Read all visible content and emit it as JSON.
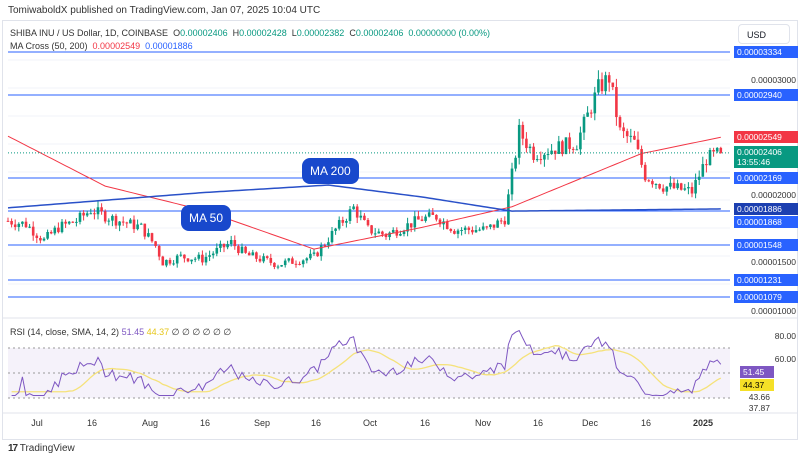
{
  "header": {
    "published": "TomiwaboldX published on TradingView.com, Jan 07, 2025 10:04 UTC",
    "currency": "USD"
  },
  "legend": {
    "symbol": "SHIBA INU / US Dollar, 1D, COINBASE",
    "o_label": "O",
    "o": "0.00002406",
    "h_label": "H",
    "h": "0.00002428",
    "l_label": "L",
    "l": "0.00002382",
    "c_label": "C",
    "c": "0.00002406",
    "change": "0.00000000 (0.00%)",
    "ma_title": "MA Cross (50, 200)",
    "ma50": "0.00002549",
    "ma200": "0.00001886"
  },
  "rsi_legend": {
    "title": "RSI (14, close, SMA, 14, 2)",
    "rsi": "51.45",
    "sma": "44.37",
    "extras": "∅ ∅ ∅ ∅ ∅ ∅"
  },
  "annotations": {
    "ma200": "MA 200",
    "ma50": "MA 50"
  },
  "footer": {
    "brand": "TradingView"
  },
  "colors": {
    "up": "#089981",
    "down": "#f23645",
    "ma50": "#f23645",
    "ma200": "#2950c8",
    "level_line": "#2962ff",
    "rsi": "#7e57c2",
    "rsi_sma": "#f5e27a"
  },
  "chart_data": [
    {
      "type": "candlestick",
      "title": "SHIBA INU / US Dollar, 1D, COINBASE",
      "unit": "USD",
      "ylim": [
        9.5e-06,
        3.6e-05
      ],
      "x_ticks": [
        "Jul",
        "16",
        "Aug",
        "16",
        "Sep",
        "16",
        "Oct",
        "16",
        "Nov",
        "16",
        "Dec",
        "16",
        "2025"
      ],
      "y_ticks": [
        "0.00003000",
        "0.00002000",
        "0.00001500",
        "0.00001000"
      ],
      "close_keypoints": [
        [
          "2024-06-23",
          1.78e-05
        ],
        [
          "2024-06-28",
          1.75e-05
        ],
        [
          "2024-07-03",
          1.6e-05
        ],
        [
          "2024-07-07",
          1.72e-05
        ],
        [
          "2024-07-12",
          1.78e-05
        ],
        [
          "2024-07-16",
          1.88e-05
        ],
        [
          "2024-07-22",
          1.8e-05
        ],
        [
          "2024-07-30",
          1.72e-05
        ],
        [
          "2024-08-03",
          1.55e-05
        ],
        [
          "2024-08-05",
          1.4e-05
        ],
        [
          "2024-08-10",
          1.45e-05
        ],
        [
          "2024-08-16",
          1.43e-05
        ],
        [
          "2024-08-24",
          1.58e-05
        ],
        [
          "2024-08-28",
          1.47e-05
        ],
        [
          "2024-09-06",
          1.38e-05
        ],
        [
          "2024-09-16",
          1.45e-05
        ],
        [
          "2024-09-22",
          1.7e-05
        ],
        [
          "2024-09-27",
          1.9e-05
        ],
        [
          "2024-10-01",
          1.7e-05
        ],
        [
          "2024-10-06",
          1.65e-05
        ],
        [
          "2024-10-16",
          1.8e-05
        ],
        [
          "2024-10-20",
          1.82e-05
        ],
        [
          "2024-10-25",
          1.7e-05
        ],
        [
          "2024-11-03",
          1.7e-05
        ],
        [
          "2024-11-08",
          1.8e-05
        ],
        [
          "2024-11-12",
          2.6e-05
        ],
        [
          "2024-11-16",
          2.4e-05
        ],
        [
          "2024-11-28",
          2.5e-05
        ],
        [
          "2024-12-04",
          3e-05
        ],
        [
          "2024-12-07",
          3.1e-05
        ],
        [
          "2024-12-10",
          2.6e-05
        ],
        [
          "2024-12-14",
          2.5e-05
        ],
        [
          "2024-12-17",
          2.2e-05
        ],
        [
          "2024-12-22",
          2.1e-05
        ],
        [
          "2024-12-30",
          2.05e-05
        ],
        [
          "2025-01-03",
          2.35e-05
        ],
        [
          "2025-01-07",
          2.406e-05
        ]
      ],
      "price_labels": [
        {
          "value": "0.00003334",
          "kind": "level"
        },
        {
          "value": "0.00002940",
          "kind": "level"
        },
        {
          "value": "0.00002549",
          "kind": "ma50"
        },
        {
          "value": "0.00002406",
          "kind": "last",
          "countdown": "13:55:46"
        },
        {
          "value": "0.00002169",
          "kind": "level"
        },
        {
          "value": "0.00001886",
          "kind": "ma200"
        },
        {
          "value": "0.00001868",
          "kind": "level"
        },
        {
          "value": "0.00001548",
          "kind": "level"
        },
        {
          "value": "0.00001231",
          "kind": "level"
        },
        {
          "value": "0.00001079",
          "kind": "level"
        }
      ],
      "series": [
        {
          "name": "MA Cross 50",
          "keypoints": [
            [
              "2024-06-23",
              2.56e-05
            ],
            [
              "2024-07-20",
              2.1e-05
            ],
            [
              "2024-08-16",
              1.88e-05
            ],
            [
              "2024-09-16",
              1.52e-05
            ],
            [
              "2024-10-16",
              1.72e-05
            ],
            [
              "2024-11-10",
              1.91e-05
            ],
            [
              "2024-12-16",
              2.4e-05
            ],
            [
              "2025-01-07",
              2.55e-05
            ]
          ]
        },
        {
          "name": "MA Cross 200",
          "keypoints": [
            [
              "2024-06-23",
              1.9e-05
            ],
            [
              "2024-08-16",
              2.04e-05
            ],
            [
              "2024-09-20",
              2.11e-05
            ],
            [
              "2024-10-16",
              2e-05
            ],
            [
              "2024-11-10",
              1.87e-05
            ],
            [
              "2025-01-07",
              1.89e-05
            ]
          ]
        }
      ]
    },
    {
      "type": "line",
      "title": "RSI (14, close, SMA, 14, 2)",
      "ylim": [
        30,
        85
      ],
      "bands": [
        30,
        50,
        70
      ],
      "y_ticks": [
        "80.00",
        "60.00",
        "43.66",
        "37.87"
      ],
      "labels": {
        "rsi": "51.45",
        "sma": "44.37"
      }
    }
  ]
}
